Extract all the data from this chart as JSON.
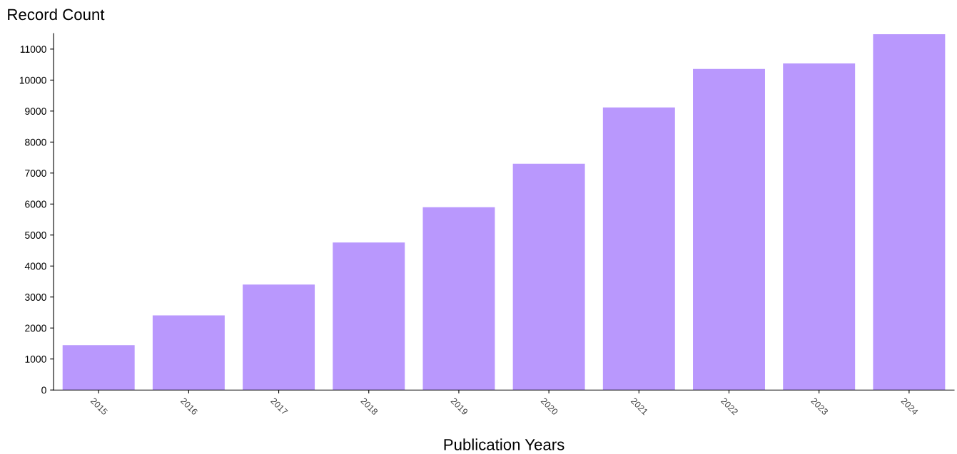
{
  "chart_data": {
    "type": "bar",
    "ylabel": "Record Count",
    "xlabel": "Publication Years",
    "categories": [
      "2015",
      "2016",
      "2017",
      "2018",
      "2019",
      "2020",
      "2021",
      "2022",
      "2023",
      "2024"
    ],
    "values": [
      1450,
      2410,
      3400,
      4760,
      5900,
      7300,
      9120,
      10360,
      10540,
      11480
    ],
    "color": "#b998fd",
    "ylim": [
      0,
      11500
    ],
    "yticks": [
      0,
      1000,
      2000,
      3000,
      4000,
      5000,
      6000,
      7000,
      8000,
      9000,
      10000,
      11000
    ],
    "grid": false,
    "legend": false
  }
}
